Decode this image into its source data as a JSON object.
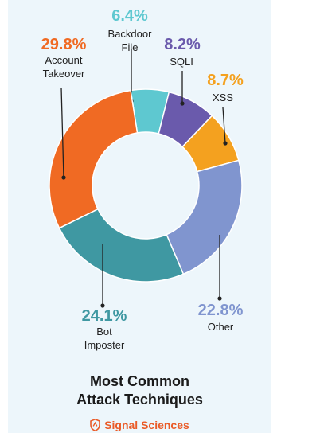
{
  "chart_data": {
    "type": "donut",
    "title": "Most Common Attack Techniques",
    "title_lines": [
      "Most Common",
      "Attack Techniques"
    ],
    "slices": [
      {
        "pct_label": "6.4%",
        "value": 6.4,
        "name_lines": [
          "Backdoor",
          "File"
        ],
        "color": "#5ec8d0"
      },
      {
        "pct_label": "8.2%",
        "value": 8.2,
        "name_lines": [
          "SQLI"
        ],
        "color": "#6a5aac"
      },
      {
        "pct_label": "8.7%",
        "value": 8.7,
        "name_lines": [
          "XSS"
        ],
        "color": "#f4a11f"
      },
      {
        "pct_label": "22.8%",
        "value": 22.8,
        "name_lines": [
          "Other"
        ],
        "color": "#8095cf"
      },
      {
        "pct_label": "24.1%",
        "value": 24.1,
        "name_lines": [
          "Bot",
          "Imposter"
        ],
        "color": "#3f98a2"
      },
      {
        "pct_label": "29.8%",
        "value": 29.8,
        "name_lines": [
          "Account",
          "Takeover"
        ],
        "color": "#f06a23"
      }
    ]
  },
  "brand": {
    "name": "Signal Sciences",
    "icon": "signal-sciences-shield-icon",
    "color": "#ea5b28"
  }
}
